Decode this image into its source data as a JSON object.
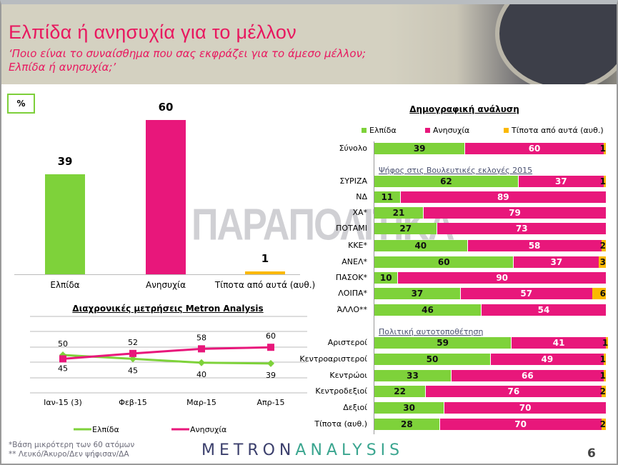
{
  "header": {
    "title": "Ελπίδα ή ανησυχία για το μέλλον",
    "subtitle_line1": "‘Ποιο είναι το συναίσθημα που σας εκφράζει για το άμεσο μέλλον;",
    "subtitle_line2": "Ελπίδα ή ανησυχία;’"
  },
  "unit_label": "%",
  "watermark": "ΠΑΡΑΠΟΛΙΤΙΚΑ",
  "colors": {
    "elpida": "#7ed23a",
    "anisychia": "#e8177b",
    "tipota": "#fbb900",
    "title": "#e8185f"
  },
  "chart_data": [
    {
      "type": "bar",
      "title": "",
      "categories": [
        "Ελπίδα",
        "Ανησυχία",
        "Τίποτα από αυτά (αυθ.)"
      ],
      "values": [
        39,
        60,
        1
      ],
      "ylim": [
        0,
        60
      ]
    },
    {
      "type": "line",
      "title": "Διαχρονικές μετρήσεις Metron Analysis",
      "x": [
        "Ιαν-15 (3)",
        "Φεβ-15",
        "Μαρ-15",
        "Απρ-15"
      ],
      "series": [
        {
          "name": "Ελπίδα",
          "values": [
            50,
            45,
            40,
            39
          ]
        },
        {
          "name": "Ανησυχία",
          "values": [
            45,
            52,
            58,
            60
          ]
        }
      ],
      "legend": "bottom"
    },
    {
      "type": "bar",
      "stacked": true,
      "orientation": "horizontal",
      "title": "Δημογραφική ανάλυση",
      "legend_entries": [
        "Ελπίδα",
        "Ανησυχία",
        "Τίποτα από αυτά (αυθ.)"
      ],
      "sections": [
        {
          "title": "",
          "rows": [
            {
              "label": "Σύνολο",
              "values": [
                39,
                60,
                1
              ]
            }
          ]
        },
        {
          "title": "Ψήφος στις Βουλευτικές εκλογές 2015",
          "rows": [
            {
              "label": "ΣΥΡΙΖΑ",
              "values": [
                62,
                37,
                1
              ]
            },
            {
              "label": "ΝΔ",
              "values": [
                11,
                89,
                0
              ]
            },
            {
              "label": "ΧΑ*",
              "values": [
                21,
                79,
                0
              ]
            },
            {
              "label": "ΠΟΤΑΜΙ",
              "values": [
                27,
                73,
                0
              ]
            },
            {
              "label": "ΚΚΕ*",
              "values": [
                40,
                58,
                2
              ]
            },
            {
              "label": "ΑΝΕΛ*",
              "values": [
                60,
                37,
                3
              ]
            },
            {
              "label": "ΠΑΣΟΚ*",
              "values": [
                10,
                90,
                0
              ]
            },
            {
              "label": "ΛΟΙΠΑ*",
              "values": [
                37,
                57,
                6
              ]
            },
            {
              "label": "ΆΛΛΟ**",
              "values": [
                46,
                54,
                0
              ]
            }
          ]
        },
        {
          "title": "Πολιτική αυτοτοποθέτηση",
          "rows": [
            {
              "label": "Αριστεροί",
              "values": [
                59,
                41,
                1
              ]
            },
            {
              "label": "Κεντροαριστεροί",
              "values": [
                50,
                49,
                1
              ]
            },
            {
              "label": "Κεντρώοι",
              "values": [
                33,
                66,
                1
              ]
            },
            {
              "label": "Κεντροδεξιοί",
              "values": [
                22,
                76,
                2
              ]
            },
            {
              "label": "Δεξιοί",
              "values": [
                30,
                70,
                0
              ]
            },
            {
              "label": "Τίποτα (αυθ.)",
              "values": [
                28,
                70,
                2
              ]
            }
          ]
        }
      ]
    }
  ],
  "footnotes": [
    "*Βάση μικρότερη των 60 ατόμων",
    "** Λευκό/Άκυρο/Δεν ψήφισαν/ΔΑ"
  ],
  "logo": {
    "part1": "METRON",
    "part2": "ANALYSIS"
  },
  "page_number": "6"
}
